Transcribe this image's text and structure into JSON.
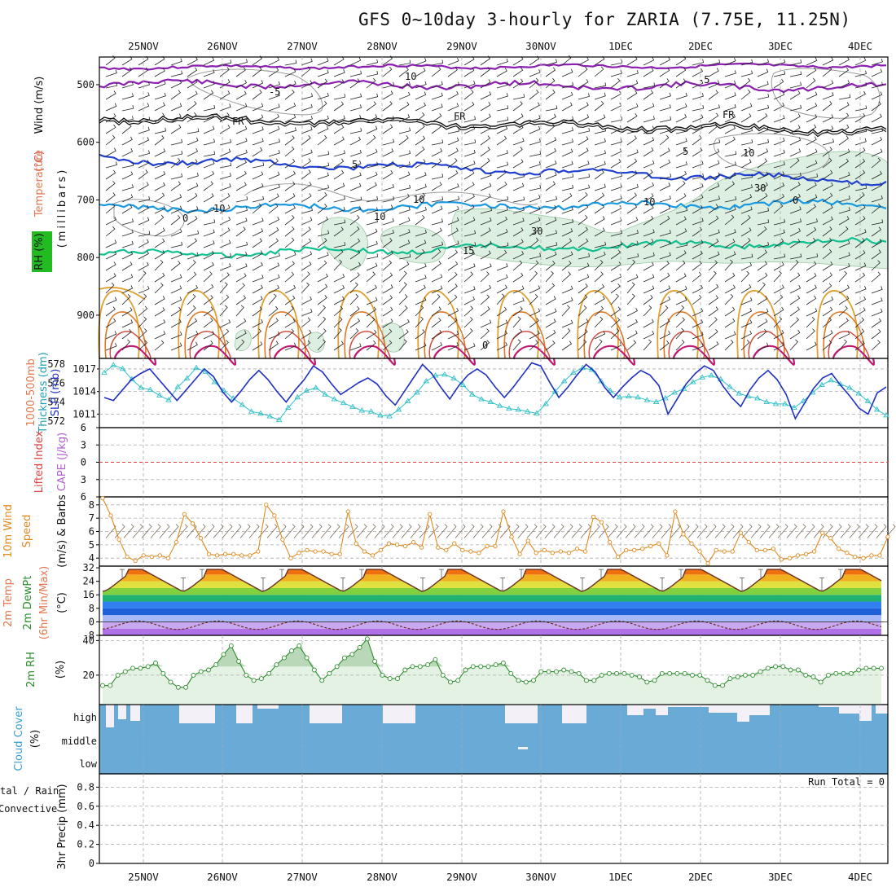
{
  "header": {
    "title": "GFS 0~10day 3-hourly for ZARIA (7.75E, 11.25N)"
  },
  "dates": [
    "25NOV",
    "26NOV",
    "27NOV",
    "28NOV",
    "29NOV",
    "30NOV",
    "1DEC",
    "2DEC",
    "3DEC",
    "4DEC"
  ],
  "colors": {
    "grid": "#aaaaaa",
    "rh_fill": "#dcefe0",
    "purple": "#8a1fb0",
    "blue": "#1f3fd0",
    "lightblue": "#1a98e0",
    "green": "#10c090",
    "orange": "#e0a030",
    "cyan": "#30c0c8",
    "slp": "#2030c0",
    "wind": "#e08a20",
    "rh2m": "#2c8c2c",
    "cloud": "#6aaad6",
    "zero": "#e04040"
  },
  "chart_data": [
    {
      "type": "line",
      "name": "upper-air cross section",
      "ylabel_parts": [
        "Wind (m/s)",
        "Temperature (°C)",
        "RH (%)"
      ],
      "yaxis_label": "(millibars)",
      "yticks": [
        500,
        600,
        700,
        800,
        900
      ],
      "ylim": [
        452,
        975
      ],
      "contour_labels": [
        "-5",
        "-5",
        "FR",
        "FR",
        "FR",
        "5",
        "5",
        "10",
        "10",
        "15",
        "10",
        "10",
        "0",
        "10",
        "30",
        "10",
        "30",
        "0",
        "0"
      ],
      "isotherms": [
        {
          "label": "-5",
          "color": "purple",
          "level_mb": 497
        },
        {
          "label": "FR",
          "color": "black",
          "level_mb": 556
        },
        {
          "label": "5",
          "color": "blue",
          "level_mb": 628
        },
        {
          "label": "10",
          "color": "lightblue",
          "level_mb": 715
        },
        {
          "label": "15",
          "color": "green",
          "level_mb": 795
        }
      ]
    },
    {
      "type": "line",
      "name": "thickness and SLP",
      "ylabel_left": "1000-500mb Thickness (dm)",
      "ylabel_right": "SLP (mb)",
      "yticks_left": [
        572,
        574,
        576,
        578
      ],
      "yticks_right": [
        1011,
        1014,
        1017
      ],
      "ylim_left": [
        571.3,
        578.6
      ],
      "ylim_right": [
        1009.2,
        1018.4
      ],
      "series": [
        {
          "name": "1000-500mb Thickness (dm)",
          "color": "cyan",
          "values": [
            577.1,
            577.9,
            577.5,
            576.4,
            575.5,
            575.3,
            574.7,
            574.2,
            575.6,
            576.5,
            577.6,
            577.2,
            576.1,
            575.2,
            574.4,
            573.7,
            573.0,
            572.8,
            572.5,
            572.1,
            573.4,
            574.5,
            575.2,
            575.5,
            574.8,
            574.3,
            573.9,
            573.5,
            573.1,
            573.0,
            572.6,
            572.5,
            573.2,
            574.1,
            575.0,
            576.2,
            576.8,
            576.9,
            576.5,
            575.8,
            574.8,
            574.3,
            574.0,
            573.6,
            573.3,
            573.2,
            573.0,
            572.8,
            573.8,
            575.1,
            576.2,
            577.1,
            577.6,
            577.4,
            576.2,
            575.2,
            574.5,
            574.6,
            574.5,
            574.2,
            574.0,
            574.4,
            575.0,
            575.4,
            576.1,
            576.6,
            576.8,
            576.4,
            575.6,
            574.9,
            574.6,
            574.4,
            574.0,
            573.8,
            573.8,
            573.4,
            574.1,
            575.0,
            575.8,
            576.3,
            575.9,
            575.5,
            574.9,
            574.1,
            573.2,
            572.6
          ]
        },
        {
          "name": "SLP (mb)",
          "color": "slp",
          "values": [
            1013.2,
            1012.8,
            1014.2,
            1015.6,
            1016.4,
            1017.0,
            1015.6,
            1014.2,
            1012.8,
            1014.2,
            1015.6,
            1017.0,
            1016.0,
            1014.0,
            1012.6,
            1014.0,
            1015.6,
            1016.8,
            1015.6,
            1014.0,
            1012.6,
            1014.2,
            1015.6,
            1017.4,
            1016.6,
            1015.0,
            1013.6,
            1014.4,
            1015.2,
            1015.8,
            1015.0,
            1013.4,
            1012.2,
            1014.0,
            1015.8,
            1017.6,
            1016.4,
            1014.6,
            1013.0,
            1014.8,
            1016.2,
            1017.0,
            1016.2,
            1014.6,
            1013.2,
            1014.6,
            1016.2,
            1017.8,
            1017.4,
            1015.2,
            1013.2,
            1014.6,
            1016.2,
            1017.6,
            1016.6,
            1014.6,
            1013.2,
            1014.6,
            1015.8,
            1016.8,
            1016.2,
            1014.8,
            1011.0,
            1013.0,
            1015.0,
            1016.4,
            1017.4,
            1016.8,
            1014.8,
            1013.2,
            1012.0,
            1014.2,
            1015.8,
            1016.8,
            1015.6,
            1013.6,
            1010.4,
            1012.4,
            1014.4,
            1015.8,
            1016.4,
            1014.8,
            1013.4,
            1011.8,
            1011.0,
            1013.8,
            1014.6
          ]
        }
      ]
    },
    {
      "type": "line",
      "name": "lifted index / CAPE",
      "ylabel_left": "Lifted Index",
      "ylabel_right": "CAPE (J/kg)",
      "yticks": [
        -6,
        -3,
        0,
        3,
        6
      ],
      "ytick_labels": [
        "6",
        "3",
        "0",
        "3",
        "6"
      ],
      "ylim": [
        -6,
        6
      ],
      "series": []
    },
    {
      "type": "line",
      "name": "10m wind",
      "ylabel_parts": [
        "10m Wind",
        "Speed",
        "(m/s) & Barbs"
      ],
      "yticks": [
        4,
        5,
        6,
        7,
        8
      ],
      "ylim": [
        3.4,
        8.6
      ],
      "series": [
        {
          "name": "10m Wind Speed",
          "color": "wind",
          "values": [
            8.5,
            7.2,
            5.4,
            4.1,
            3.8,
            4.2,
            4.1,
            4.2,
            4.0,
            5.2,
            7.3,
            6.6,
            5.5,
            4.3,
            4.2,
            4.3,
            4.3,
            4.2,
            4.2,
            4.5,
            8.0,
            7.2,
            5.4,
            4.0,
            4.4,
            4.6,
            4.5,
            4.5,
            4.3,
            4.3,
            7.5,
            5.1,
            4.5,
            4.2,
            4.6,
            5.1,
            5.0,
            4.9,
            5.2,
            4.8,
            7.3,
            4.8,
            4.6,
            5.1,
            4.6,
            4.5,
            4.4,
            4.9,
            4.9,
            7.5,
            5.6,
            4.3,
            5.3,
            4.4,
            4.6,
            4.4,
            4.5,
            4.4,
            4.7,
            4.5,
            7.1,
            6.7,
            5.2,
            4.1,
            4.6,
            4.6,
            4.7,
            4.9,
            5.1,
            4.2,
            7.5,
            5.8,
            5.1,
            4.5,
            3.6,
            4.6,
            4.5,
            4.5,
            5.9,
            5.2,
            4.6,
            4.6,
            4.7,
            3.9,
            4.0,
            4.2,
            4.3,
            4.5,
            5.9,
            5.5,
            4.7,
            4.4,
            4.1,
            4.0,
            4.2,
            4.2,
            5.6
          ]
        }
      ]
    },
    {
      "type": "area",
      "name": "2m temperature and dewpoint",
      "ylabel_parts": [
        "2m Temp",
        "2m DewPt",
        "(6hr Min/Max)",
        "(°C)"
      ],
      "yticks": [
        -8,
        0,
        8,
        16,
        24,
        32
      ],
      "ytick_labels": [
        "-8",
        "0",
        "8",
        "16",
        "24",
        "32"
      ],
      "ylim": [
        -8,
        33
      ],
      "series": [
        {
          "name": "2m Temp",
          "min_c": 18,
          "max_c": 31
        },
        {
          "name": "2m DewPt",
          "min_c": -5,
          "max_c": 1
        }
      ]
    },
    {
      "type": "area",
      "name": "2m RH",
      "ylabel_parts": [
        "2m RH",
        "(%)"
      ],
      "yticks": [
        20,
        40
      ],
      "ylim": [
        3,
        43
      ],
      "series": [
        {
          "name": "2m RH",
          "color": "rh2m",
          "values": [
            14,
            14,
            20,
            22,
            24,
            24,
            25,
            27,
            21,
            16,
            13,
            13,
            20,
            22,
            23,
            26,
            32,
            37,
            28,
            20,
            17,
            18,
            21,
            26,
            30,
            34,
            37,
            30,
            23,
            17,
            21,
            25,
            30,
            32,
            36,
            41,
            28,
            20,
            18,
            18,
            23,
            25,
            25,
            26,
            29,
            20,
            16,
            17,
            23,
            25,
            25,
            25,
            26,
            27,
            21,
            17,
            16,
            17,
            22,
            22,
            22,
            23,
            22,
            21,
            17,
            17,
            20,
            21,
            21,
            21,
            20,
            19,
            16,
            17,
            21,
            21,
            21,
            21,
            20,
            20,
            17,
            14,
            14,
            18,
            19,
            20,
            20,
            22,
            24,
            25,
            25,
            23,
            23,
            20,
            19,
            16,
            20,
            21,
            21,
            21,
            23,
            24,
            24,
            24
          ]
        }
      ]
    },
    {
      "type": "area",
      "name": "cloud cover",
      "ylabel_parts": [
        "Cloud Cover",
        "(%)"
      ],
      "ytick_labels": [
        "high",
        "middle",
        "low"
      ]
    },
    {
      "type": "bar",
      "name": "3hr precip",
      "ylabel_parts": [
        "Total / Rain",
        "Convective",
        "3hr Precip (mm)"
      ],
      "yticks": [
        0,
        0.2,
        0.4,
        0.6,
        0.8
      ],
      "ytick_labels": [
        "0",
        "0.2",
        "0.4",
        "0.6",
        "0.8"
      ],
      "ylim": [
        0,
        0.94
      ],
      "annotation": "Run Total = 0",
      "series": []
    }
  ],
  "labels": {
    "rh_tag": "RH (%)",
    "temp_word": "Temperature",
    "temp_unit": "(°C)",
    "wind_word": "Wind (m/s)",
    "millibars": "(millibars)",
    "thickness1": "1000-500mb",
    "thickness2": "Thickness (dm)",
    "slp": "SLP (mb)",
    "lifted": "Lifted Index",
    "cape": "CAPE (J/kg)",
    "wind10a": "10m Wind",
    "wind10b": "Speed",
    "wind10c": "(m/s) & Barbs",
    "temp2a": "2m Temp",
    "temp2b": "2m DewPt",
    "temp2c": "(6hr Min/Max)",
    "temp2d": "(°C)",
    "rh2a": "2m RH",
    "rh2b": "(%)",
    "cloud1": "Cloud Cover",
    "cloud2": "(%)",
    "precip1": "tal / Rain",
    "precip2": "Convective",
    "precip3": "3hr Precip (mm)",
    "run_total": "Run Total = 0"
  }
}
